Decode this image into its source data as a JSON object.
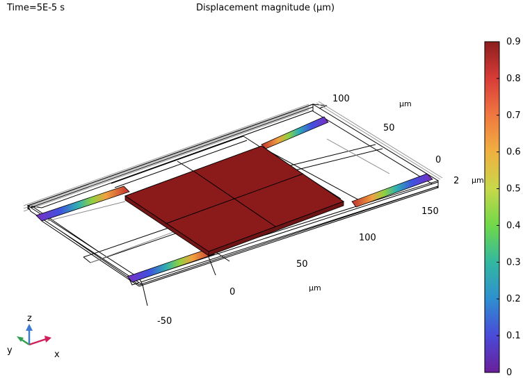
{
  "header": {
    "time_label": "Time=5E-5 s",
    "title": "Displacement magnitude (µm)"
  },
  "chart_data": {
    "type": "heatmap",
    "title": "Displacement magnitude (µm)",
    "time": "Time=5E-5 s",
    "colorbar": {
      "min": 0,
      "max": 0.9,
      "ticks": [
        "0",
        "0.1",
        "0.2",
        "0.3",
        "0.4",
        "0.5",
        "0.6",
        "0.7",
        "0.8",
        "0.9"
      ],
      "colormap": [
        "#6a1f9a",
        "#4a4ad8",
        "#2e8fd0",
        "#32b8a0",
        "#6fd84a",
        "#c8d84a",
        "#f0b040",
        "#f07840",
        "#d83c38",
        "#8b1e1e"
      ]
    },
    "axes": {
      "x_ticks": [
        "-50",
        "0",
        "50",
        "100",
        "150"
      ],
      "x_unit": "µm",
      "y_ticks": [
        "0",
        "50",
        "100"
      ],
      "y_unit": "µm",
      "z_ticks": [
        "2"
      ],
      "z_unit": "µm"
    },
    "plate_color": "#8b1a1a",
    "max_displacement_um": 0.9
  },
  "triad": {
    "x": "x",
    "y": "y",
    "z": "z"
  }
}
